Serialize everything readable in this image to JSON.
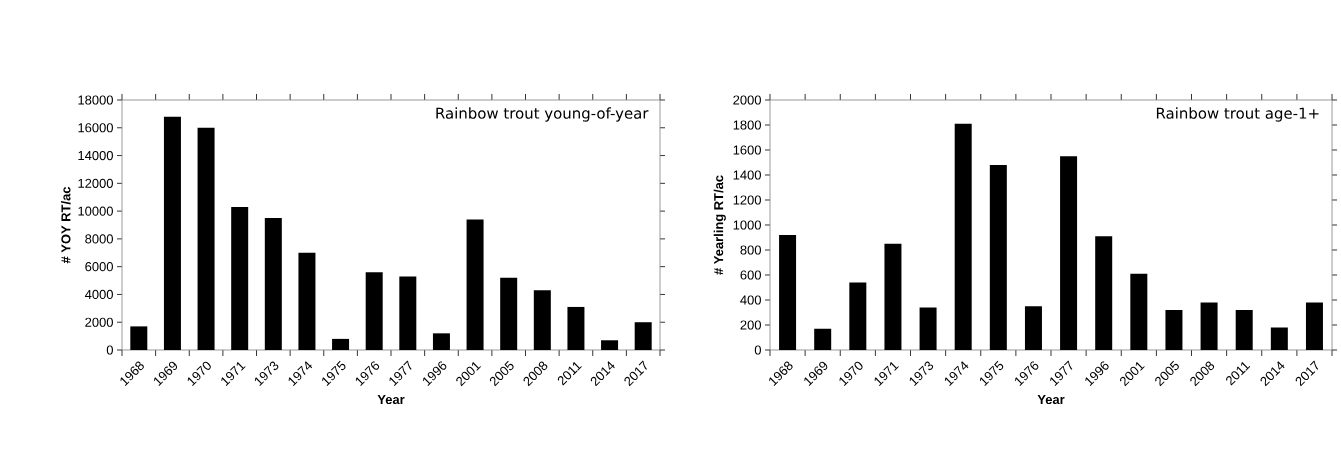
{
  "chart_data": [
    {
      "type": "bar",
      "xlabel": "Year",
      "ylabel": "# YOY RT/ac",
      "annotations": [
        "Rainbow trout young-of-year"
      ],
      "categories": [
        "1968",
        "1969",
        "1970",
        "1971",
        "1973",
        "1974",
        "1975",
        "1976",
        "1977",
        "1996",
        "2001",
        "2005",
        "2008",
        "2011",
        "2014",
        "2017"
      ],
      "values": [
        1700,
        16800,
        16000,
        10300,
        9500,
        7000,
        800,
        5600,
        5300,
        1200,
        9400,
        5200,
        4300,
        3100,
        700,
        2000
      ],
      "color": "#000000",
      "ylim": [
        0,
        18000
      ],
      "yticks": [
        0,
        2000,
        4000,
        6000,
        8000,
        10000,
        12000,
        14000,
        16000,
        18000
      ]
    },
    {
      "type": "bar",
      "xlabel": "Year",
      "ylabel": "# Yearling  RT/ac",
      "annotations": [
        "Rainbow trout age-1+"
      ],
      "categories": [
        "1968",
        "1969",
        "1970",
        "1971",
        "1973",
        "1974",
        "1975",
        "1976",
        "1977",
        "1996",
        "2001",
        "2005",
        "2008",
        "2011",
        "2014",
        "2017"
      ],
      "values": [
        920,
        170,
        540,
        850,
        340,
        1810,
        1480,
        350,
        1550,
        910,
        610,
        320,
        380,
        320,
        180,
        380
      ],
      "color": "#000000",
      "ylim": [
        0,
        2000
      ],
      "yticks": [
        0,
        200,
        400,
        600,
        800,
        1000,
        1200,
        1400,
        1600,
        1800,
        2000
      ]
    }
  ]
}
